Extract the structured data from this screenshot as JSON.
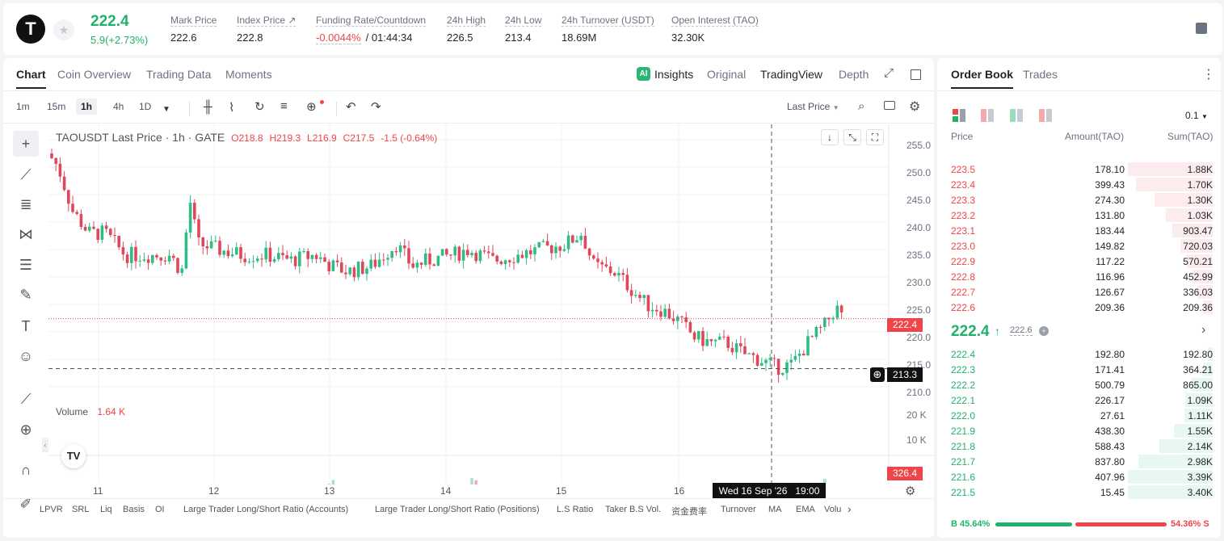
{
  "header": {
    "logo": "T",
    "price": "222.4",
    "change": "5.9(+2.73%)",
    "stats": [
      {
        "label": "Mark Price",
        "value": "222.6",
        "x": 211
      },
      {
        "label": "Index Price ↗",
        "value": "222.8",
        "x": 293
      },
      {
        "label": "Funding Rate/Countdown",
        "value": "",
        "x": 391
      },
      {
        "label": "24h High",
        "value": "226.5",
        "x": 553
      },
      {
        "label": "24h Low",
        "value": "213.4",
        "x": 625
      },
      {
        "label": "24h Turnover (USDT)",
        "value": "18.69M",
        "x": 695
      },
      {
        "label": "Open Interest (TAO)",
        "value": "32.30K",
        "x": 831
      }
    ],
    "funding_rate": "-0.0044%",
    "countdown": "/ 01:44:34"
  },
  "chart_tabs": [
    "Chart",
    "Coin Overview",
    "Trading Data",
    "Moments"
  ],
  "view_tabs": [
    "Insights",
    "Original",
    "TradingView",
    "Depth"
  ],
  "timeframes": [
    "1m",
    "15m",
    "1h",
    "4h",
    "1D"
  ],
  "price_type": "Last Price",
  "legend": {
    "symbol": "TAOUSDT Last Price · 1h · GATE",
    "o": "O218.8",
    "h": "H219.3",
    "l": "L216.9",
    "c": "C217.5",
    "chg": "-1.5 (-0.64%)"
  },
  "volume_legend": {
    "label": "Volume",
    "value": "1.64 K"
  },
  "price_axis": [
    "255.0",
    "250.0",
    "245.0",
    "240.0",
    "235.0",
    "230.0",
    "225.0",
    "220.0",
    "215.0",
    "210.0"
  ],
  "volume_axis": [
    "20 K",
    "10 K"
  ],
  "current_price_tag": "222.4",
  "crosshair_price_tag": "213.3",
  "volume_tag": "326.4",
  "date_axis": [
    "11",
    "12",
    "13",
    "14",
    "15",
    "16"
  ],
  "crosshair_date": "Wed 16 Sep '26   19:00",
  "indicators": [
    "LPVR",
    "SRL",
    "Liq",
    "Basis",
    "OI",
    "Large Trader Long/Short Ratio (Accounts)",
    "Large Trader Long/Short Ratio (Positions)",
    "L.S Ratio",
    "Taker B.S Vol.",
    "资金费率",
    "Turnover",
    "MA",
    "EMA",
    "Volu"
  ],
  "orderbook": {
    "tabs": [
      "Order Book",
      "Trades"
    ],
    "precision": "0.1",
    "cols": [
      "Price",
      "Amount(TAO)",
      "Sum(TAO)"
    ],
    "asks": [
      {
        "p": "223.5",
        "a": "178.10",
        "s": "1.88K",
        "f": 1.0
      },
      {
        "p": "223.4",
        "a": "399.43",
        "s": "1.70K",
        "f": 0.9
      },
      {
        "p": "223.3",
        "a": "274.30",
        "s": "1.30K",
        "f": 0.69
      },
      {
        "p": "223.2",
        "a": "131.80",
        "s": "1.03K",
        "f": 0.55
      },
      {
        "p": "223.1",
        "a": "183.44",
        "s": "903.47",
        "f": 0.48
      },
      {
        "p": "223.0",
        "a": "149.82",
        "s": "720.03",
        "f": 0.38
      },
      {
        "p": "222.9",
        "a": "117.22",
        "s": "570.21",
        "f": 0.3
      },
      {
        "p": "222.8",
        "a": "116.96",
        "s": "452.99",
        "f": 0.24
      },
      {
        "p": "222.7",
        "a": "126.67",
        "s": "336.03",
        "f": 0.18
      },
      {
        "p": "222.6",
        "a": "209.36",
        "s": "209.36",
        "f": 0.11
      }
    ],
    "mid": {
      "price": "222.4",
      "mark": "222.6"
    },
    "bids": [
      {
        "p": "222.4",
        "a": "192.80",
        "s": "192.80",
        "f": 0.06
      },
      {
        "p": "222.3",
        "a": "171.41",
        "s": "364.21",
        "f": 0.11
      },
      {
        "p": "222.2",
        "a": "500.79",
        "s": "865.00",
        "f": 0.25
      },
      {
        "p": "222.1",
        "a": "226.17",
        "s": "1.09K",
        "f": 0.32
      },
      {
        "p": "222.0",
        "a": "27.61",
        "s": "1.11K",
        "f": 0.33
      },
      {
        "p": "221.9",
        "a": "438.30",
        "s": "1.55K",
        "f": 0.46
      },
      {
        "p": "221.8",
        "a": "588.43",
        "s": "2.14K",
        "f": 0.63
      },
      {
        "p": "221.7",
        "a": "837.80",
        "s": "2.98K",
        "f": 0.88
      },
      {
        "p": "221.6",
        "a": "407.96",
        "s": "3.39K",
        "f": 1.0
      },
      {
        "p": "221.5",
        "a": "15.45",
        "s": "3.40K",
        "f": 1.0
      }
    ],
    "buy_ratio": "B 45.64%",
    "sell_ratio": "54.36% S",
    "buy_fraction": 0.4564
  }
}
